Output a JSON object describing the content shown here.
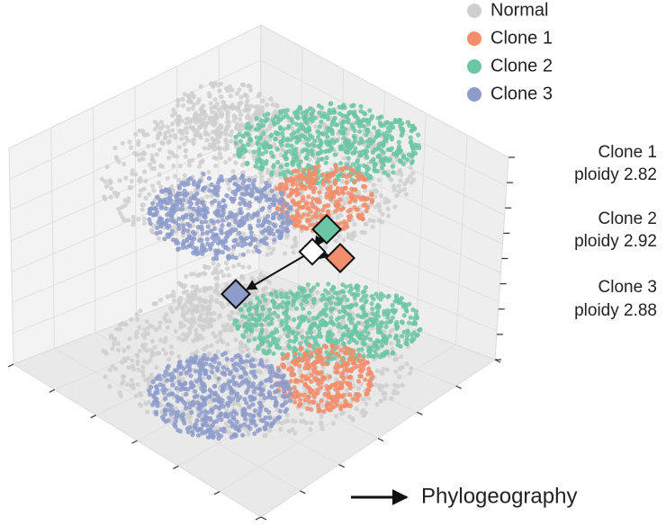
{
  "legend": [
    {
      "name": "Normal",
      "color": "#cfcfcf"
    },
    {
      "name": "Clone 1",
      "color": "#f28e6b"
    },
    {
      "name": "Clone 2",
      "color": "#6cc5a3"
    },
    {
      "name": "Clone 3",
      "color": "#8e9ccb"
    }
  ],
  "annotations": [
    {
      "clone": "Clone 1",
      "ploidy": "ploidy 2.82"
    },
    {
      "clone": "Clone 2",
      "ploidy": "ploidy 2.92"
    },
    {
      "clone": "Clone 3",
      "ploidy": "ploidy 2.88"
    }
  ],
  "caption": "Phylogeography"
}
